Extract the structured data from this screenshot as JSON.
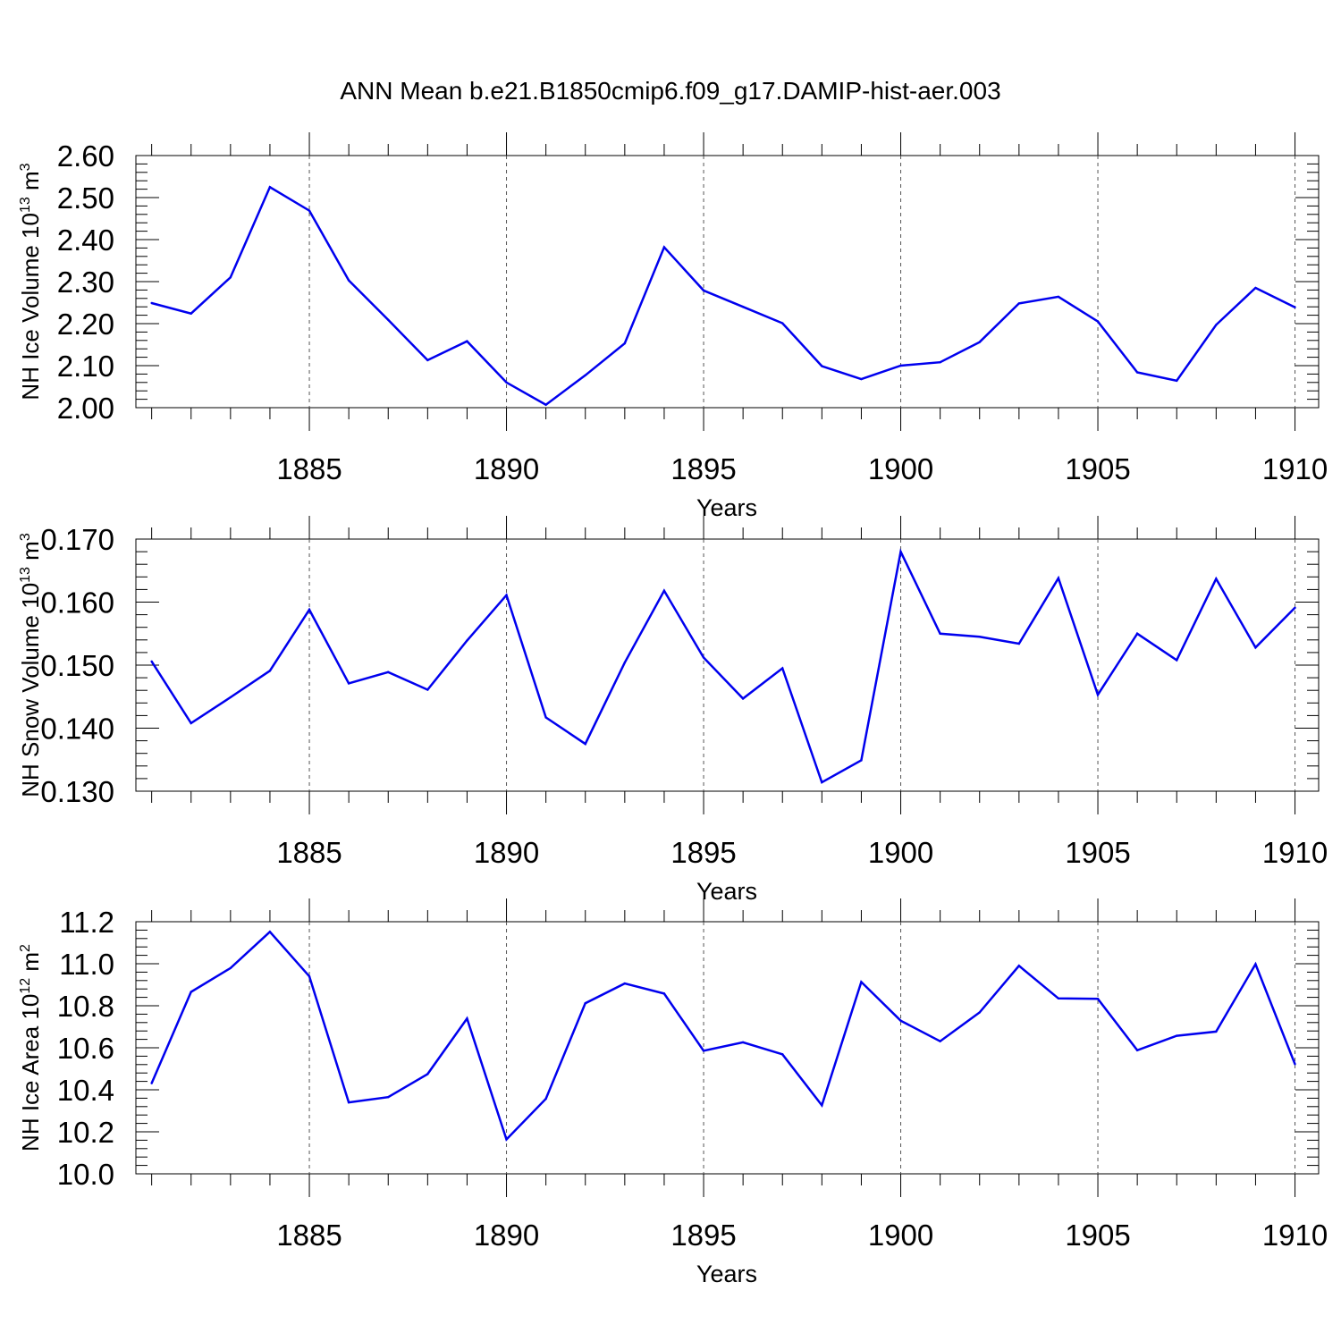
{
  "title": "ANN Mean b.e21.B1850cmip6.f09_g17.DAMIP-hist-aer.003",
  "chart_data": [
    {
      "type": "line",
      "ylabel": {
        "prefix": "NH Ice Volume 10",
        "exp": "13",
        "unit": " m",
        "unit_exp": "3"
      },
      "xlabel": "Years",
      "xlim": [
        1880.6,
        1910.6
      ],
      "x_ticks": [
        1885,
        1890,
        1895,
        1900,
        1905,
        1910
      ],
      "x_tick_labels": [
        "1885",
        "1890",
        "1895",
        "1900",
        "1905",
        "1910"
      ],
      "ylim": [
        2.0,
        2.6
      ],
      "y_ticks": [
        2.0,
        2.1,
        2.2,
        2.3,
        2.4,
        2.5,
        2.6
      ],
      "y_tick_labels": [
        "2.00",
        "2.10",
        "2.20",
        "2.30",
        "2.40",
        "2.50",
        "2.60"
      ],
      "y_minor_step": 0.02,
      "grid": "dashed vertical lines at major x ticks",
      "line_color": "#0000ee",
      "x": [
        1881,
        1882,
        1883,
        1884,
        1885,
        1886,
        1887,
        1888,
        1889,
        1890,
        1891,
        1892,
        1893,
        1894,
        1895,
        1896,
        1897,
        1898,
        1899,
        1900,
        1901,
        1902,
        1903,
        1904,
        1905,
        1906,
        1907,
        1908,
        1909,
        1910
      ],
      "values": [
        2.249,
        2.224,
        2.31,
        2.525,
        2.469,
        2.303,
        2.209,
        2.113,
        2.158,
        2.06,
        2.007,
        2.077,
        2.153,
        2.382,
        2.279,
        2.24,
        2.201,
        2.099,
        2.068,
        2.1,
        2.108,
        2.156,
        2.248,
        2.264,
        2.205,
        2.084,
        2.064,
        2.197,
        2.285,
        2.239
      ]
    },
    {
      "type": "line",
      "ylabel": {
        "prefix": "NH Snow Volume 10",
        "exp": "13",
        "unit": " m",
        "unit_exp": "3"
      },
      "xlabel": "Years",
      "xlim": [
        1880.6,
        1910.6
      ],
      "x_ticks": [
        1885,
        1890,
        1895,
        1900,
        1905,
        1910
      ],
      "x_tick_labels": [
        "1885",
        "1890",
        "1895",
        "1900",
        "1905",
        "1910"
      ],
      "ylim": [
        0.13,
        0.17
      ],
      "y_ticks": [
        0.13,
        0.14,
        0.15,
        0.16,
        0.17
      ],
      "y_tick_labels": [
        "0.130",
        "0.140",
        "0.150",
        "0.160",
        "0.170"
      ],
      "y_minor_step": 0.002,
      "grid": "dashed vertical lines at major x ticks",
      "line_color": "#0000ee",
      "x": [
        1881,
        1882,
        1883,
        1884,
        1885,
        1886,
        1887,
        1888,
        1889,
        1890,
        1891,
        1892,
        1893,
        1894,
        1895,
        1896,
        1897,
        1898,
        1899,
        1900,
        1901,
        1902,
        1903,
        1904,
        1905,
        1906,
        1907,
        1908,
        1909,
        1910
      ],
      "values": [
        0.1506,
        0.1408,
        0.1449,
        0.1491,
        0.1588,
        0.1471,
        0.1489,
        0.1461,
        0.1539,
        0.1611,
        0.1417,
        0.1375,
        0.1504,
        0.1618,
        0.1512,
        0.1447,
        0.1495,
        0.1314,
        0.1349,
        0.168,
        0.155,
        0.1545,
        0.1534,
        0.1638,
        0.1453,
        0.155,
        0.1508,
        0.1637,
        0.1528,
        0.1591
      ]
    },
    {
      "type": "line",
      "ylabel": {
        "prefix": "NH Ice Area 10",
        "exp": "12",
        "unit": " m",
        "unit_exp": "2"
      },
      "xlabel": "Years",
      "xlim": [
        1880.6,
        1910.6
      ],
      "x_ticks": [
        1885,
        1890,
        1895,
        1900,
        1905,
        1910
      ],
      "x_tick_labels": [
        "1885",
        "1890",
        "1895",
        "1900",
        "1905",
        "1910"
      ],
      "ylim": [
        10.0,
        11.2
      ],
      "y_ticks": [
        10.0,
        10.2,
        10.4,
        10.6,
        10.8,
        11.0,
        11.2
      ],
      "y_tick_labels": [
        "10.0",
        "10.2",
        "10.4",
        "10.6",
        "10.8",
        "11.0",
        "11.2"
      ],
      "y_minor_step": 0.04,
      "grid": "dashed vertical lines at major x ticks",
      "line_color": "#0000ee",
      "x": [
        1881,
        1882,
        1883,
        1884,
        1885,
        1886,
        1887,
        1888,
        1889,
        1890,
        1891,
        1892,
        1893,
        1894,
        1895,
        1896,
        1897,
        1898,
        1899,
        1900,
        1901,
        1902,
        1903,
        1904,
        1905,
        1906,
        1907,
        1908,
        1909,
        1910
      ],
      "values": [
        10.431,
        10.866,
        10.979,
        11.152,
        10.94,
        10.34,
        10.365,
        10.475,
        10.739,
        10.164,
        10.357,
        10.812,
        10.906,
        10.858,
        10.586,
        10.626,
        10.569,
        10.326,
        10.913,
        10.729,
        10.631,
        10.768,
        10.99,
        10.835,
        10.833,
        10.588,
        10.657,
        10.677,
        10.998,
        10.522
      ]
    }
  ]
}
